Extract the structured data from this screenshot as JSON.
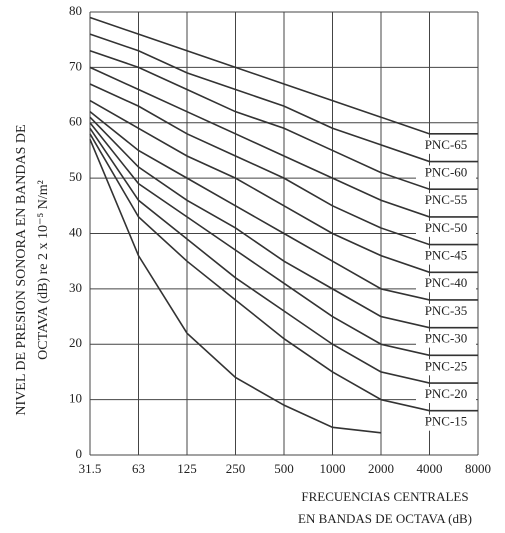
{
  "chart_data": {
    "type": "line",
    "y_label": [
      "NIVEL DE PRESION SONORA EN BANDAS DE",
      "OCTAVA (dB) re 2 x 10⁻⁵ N/m²"
    ],
    "x_label": [
      "FRECUENCIAS CENTRALES",
      "EN BANDAS DE OCTAVA (dB)"
    ],
    "categories": [
      "31.5",
      "63",
      "125",
      "250",
      "500",
      "1000",
      "2000",
      "4000",
      "8000"
    ],
    "ylim": [
      0,
      80
    ],
    "yticks": [
      0,
      10,
      20,
      30,
      40,
      50,
      60,
      70,
      80
    ],
    "grid": true,
    "color": "#333333",
    "series": [
      {
        "values": [
          57,
          36,
          22,
          14,
          9,
          5,
          4,
          null,
          null
        ]
      },
      {
        "name": "PNC-15",
        "values": [
          58,
          43,
          35,
          28,
          21,
          15,
          10,
          8,
          8
        ]
      },
      {
        "name": "PNC-20",
        "values": [
          59,
          46,
          39,
          32,
          26,
          20,
          15,
          13,
          13
        ]
      },
      {
        "name": "PNC-25",
        "values": [
          60,
          49,
          43,
          37,
          31,
          25,
          20,
          18,
          18
        ]
      },
      {
        "name": "PNC-30",
        "values": [
          61,
          52,
          46,
          41,
          35,
          30,
          25,
          23,
          23
        ]
      },
      {
        "name": "PNC-35",
        "values": [
          62,
          55,
          50,
          45,
          40,
          35,
          30,
          28,
          28
        ]
      },
      {
        "name": "PNC-40",
        "values": [
          64,
          59,
          54,
          50,
          45,
          40,
          36,
          33,
          33
        ]
      },
      {
        "name": "PNC-45",
        "values": [
          67,
          63,
          58,
          54,
          50,
          45,
          41,
          38,
          38
        ]
      },
      {
        "name": "PNC-50",
        "values": [
          70,
          66,
          62,
          58,
          54,
          50,
          46,
          43,
          43
        ]
      },
      {
        "name": "PNC-55",
        "values": [
          73,
          70,
          66,
          62,
          59,
          55,
          51,
          48,
          48
        ]
      },
      {
        "name": "PNC-60",
        "values": [
          76,
          73,
          69,
          66,
          63,
          59,
          56,
          53,
          53
        ]
      },
      {
        "name": "PNC-65",
        "values": [
          79,
          76,
          73,
          70,
          67,
          64,
          61,
          58,
          58
        ]
      }
    ]
  }
}
